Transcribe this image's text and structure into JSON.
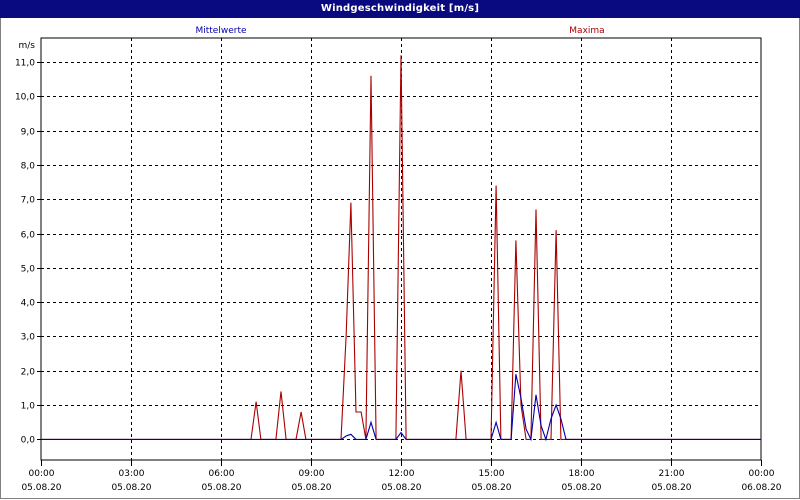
{
  "window": {
    "title": "Windgeschwindigkeit [m/s]"
  },
  "chart_data": {
    "type": "line",
    "title": "Windgeschwindigkeit [m/s]",
    "ylabel": "m/s",
    "xlabel": "",
    "ylim": [
      -0.6,
      11.7
    ],
    "xlim": [
      0,
      24
    ],
    "grid": true,
    "x_ticks": [
      {
        "x": 0,
        "time": "00:00",
        "date": "05.08.20"
      },
      {
        "x": 3,
        "time": "03:00",
        "date": "05.08.20"
      },
      {
        "x": 6,
        "time": "06:00",
        "date": "05.08.20"
      },
      {
        "x": 9,
        "time": "09:00",
        "date": "05.08.20"
      },
      {
        "x": 12,
        "time": "12:00",
        "date": "05.08.20"
      },
      {
        "x": 15,
        "time": "15:00",
        "date": "05.08.20"
      },
      {
        "x": 18,
        "time": "18:00",
        "date": "05.08.20"
      },
      {
        "x": 21,
        "time": "21:00",
        "date": "05.08.20"
      },
      {
        "x": 24,
        "time": "00:00",
        "date": "06.08.20"
      }
    ],
    "y_ticks": [
      {
        "v": 0,
        "label": "0,0"
      },
      {
        "v": 1,
        "label": "1,0"
      },
      {
        "v": 2,
        "label": "2,0"
      },
      {
        "v": 3,
        "label": "3,0"
      },
      {
        "v": 4,
        "label": "4,0"
      },
      {
        "v": 5,
        "label": "5,0"
      },
      {
        "v": 6,
        "label": "6,0"
      },
      {
        "v": 7,
        "label": "7,0"
      },
      {
        "v": 8,
        "label": "8,0"
      },
      {
        "v": 9,
        "label": "9,0"
      },
      {
        "v": 10,
        "label": "10,0"
      },
      {
        "v": 11,
        "label": "11,0"
      }
    ],
    "series": [
      {
        "name": "Mittelwerte",
        "color": "#0000aa",
        "points": [
          [
            0,
            0
          ],
          [
            10.0,
            0
          ],
          [
            10.17,
            0.1
          ],
          [
            10.33,
            0.15
          ],
          [
            10.5,
            0
          ],
          [
            10.83,
            0
          ],
          [
            11.0,
            0.5
          ],
          [
            11.17,
            0
          ],
          [
            11.83,
            0
          ],
          [
            12.0,
            0.2
          ],
          [
            12.17,
            0
          ],
          [
            15.0,
            0
          ],
          [
            15.17,
            0.5
          ],
          [
            15.33,
            0
          ],
          [
            15.67,
            0
          ],
          [
            15.83,
            1.9
          ],
          [
            16.0,
            1.2
          ],
          [
            16.17,
            0.3
          ],
          [
            16.33,
            0
          ],
          [
            16.5,
            1.3
          ],
          [
            16.67,
            0.4
          ],
          [
            16.83,
            0
          ],
          [
            17.0,
            0.6
          ],
          [
            17.17,
            1.0
          ],
          [
            17.33,
            0.6
          ],
          [
            17.5,
            0
          ],
          [
            24,
            0
          ]
        ]
      },
      {
        "name": "Maxima",
        "color": "#aa0000",
        "points": [
          [
            0,
            0
          ],
          [
            7.0,
            0
          ],
          [
            7.17,
            1.1
          ],
          [
            7.33,
            0
          ],
          [
            7.83,
            0
          ],
          [
            8.0,
            1.4
          ],
          [
            8.17,
            0
          ],
          [
            8.5,
            0
          ],
          [
            8.67,
            0.8
          ],
          [
            8.83,
            0
          ],
          [
            10.0,
            0
          ],
          [
            10.17,
            3.0
          ],
          [
            10.33,
            6.9
          ],
          [
            10.5,
            0.8
          ],
          [
            10.67,
            0.8
          ],
          [
            10.83,
            0
          ],
          [
            11.0,
            10.6
          ],
          [
            11.17,
            0
          ],
          [
            11.83,
            0
          ],
          [
            12.0,
            11.2
          ],
          [
            12.17,
            0
          ],
          [
            13.83,
            0
          ],
          [
            14.0,
            2.0
          ],
          [
            14.17,
            0
          ],
          [
            15.0,
            0
          ],
          [
            15.17,
            7.4
          ],
          [
            15.33,
            0
          ],
          [
            15.67,
            0
          ],
          [
            15.83,
            5.8
          ],
          [
            16.0,
            1.0
          ],
          [
            16.17,
            0
          ],
          [
            16.33,
            0
          ],
          [
            16.5,
            6.7
          ],
          [
            16.67,
            0
          ],
          [
            17.0,
            0
          ],
          [
            17.17,
            6.1
          ],
          [
            17.33,
            0
          ],
          [
            17.5,
            0
          ],
          [
            24,
            0
          ]
        ]
      }
    ]
  }
}
